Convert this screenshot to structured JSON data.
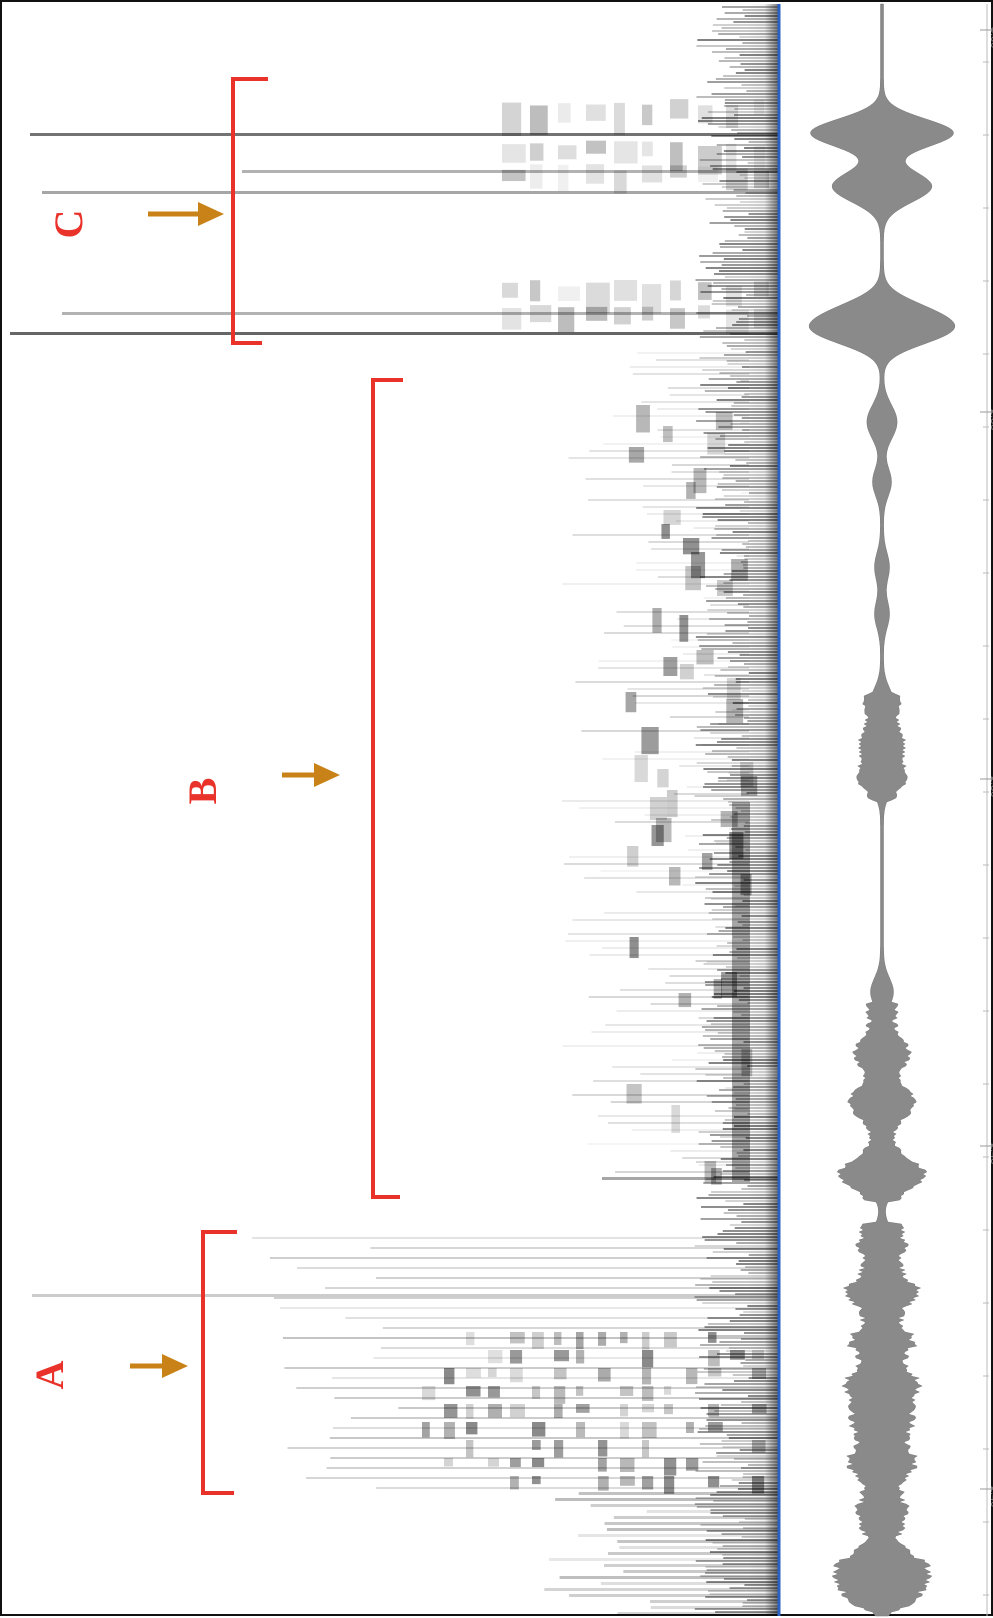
{
  "figure": {
    "orientation": "rotated-90",
    "colors": {
      "bracket": "#e8322a",
      "arrow": "#c98217",
      "label": "#e8322a",
      "baseline": "#2a62c4",
      "waveform": "#8a8a8a",
      "spectrogram": "#000000"
    },
    "annotations": [
      {
        "id": "A",
        "label": "A"
      },
      {
        "id": "B",
        "label": "B"
      },
      {
        "id": "C",
        "label": "C"
      }
    ],
    "time_ticks": [
      "2:40",
      "2:45",
      "2:50",
      "2:55",
      "3:00"
    ]
  }
}
